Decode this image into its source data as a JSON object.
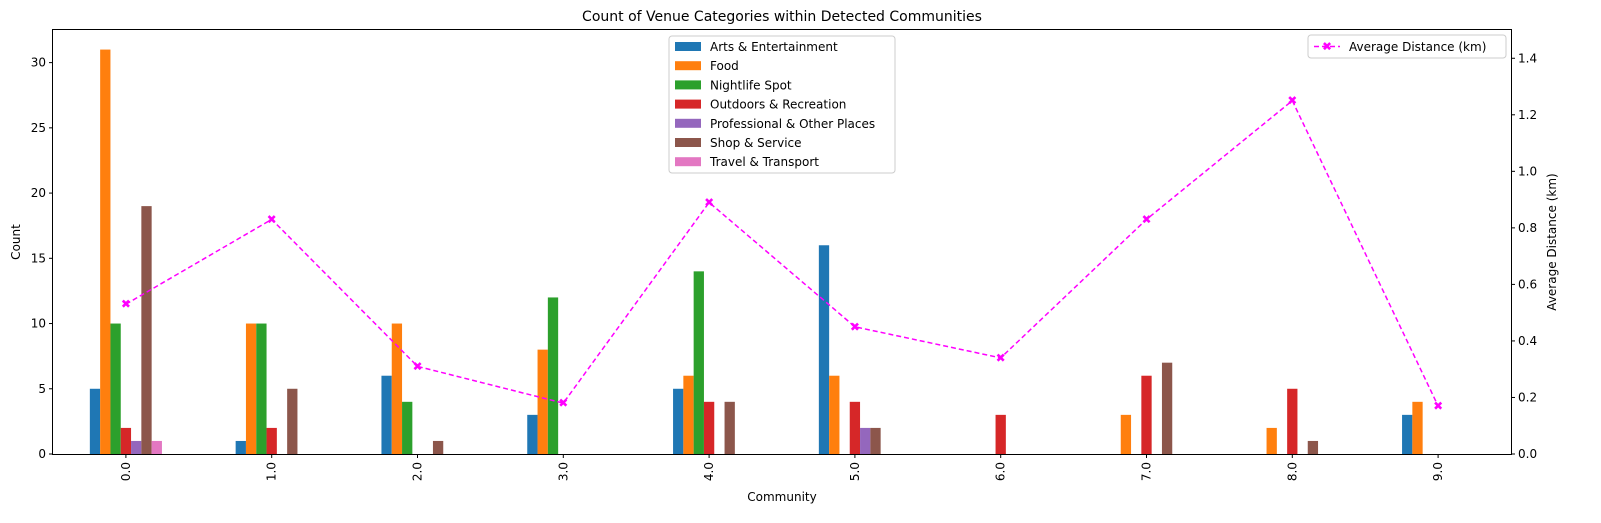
{
  "chart_data": {
    "type": "bar",
    "title": "Count of Venue Categories within Detected Communities",
    "xlabel": "Community",
    "ylabel": "Count",
    "y2label": "Average Distance (km)",
    "categories": [
      "0.0",
      "1.0",
      "2.0",
      "3.0",
      "4.0",
      "5.0",
      "6.0",
      "7.0",
      "8.0",
      "9.0"
    ],
    "ylim": [
      0,
      32.5
    ],
    "y2lim": [
      0,
      1.5
    ],
    "yticks": [
      0,
      5,
      10,
      15,
      20,
      25,
      30
    ],
    "y2ticks": [
      "0.0",
      "0.2",
      "0.4",
      "0.6",
      "0.8",
      "1.0",
      "1.2",
      "1.4"
    ],
    "grid": false,
    "legend_position": "top-center",
    "line_legend_position": "top-right",
    "series": [
      {
        "name": "Arts & Entertainment",
        "color": "#1f77b4",
        "values": [
          5,
          1,
          6,
          3,
          5,
          16,
          0,
          0,
          0,
          3
        ]
      },
      {
        "name": "Food",
        "color": "#ff7f0e",
        "values": [
          31,
          10,
          10,
          8,
          6,
          6,
          0,
          3,
          2,
          4
        ]
      },
      {
        "name": "Nightlife Spot",
        "color": "#2ca02c",
        "values": [
          10,
          10,
          4,
          12,
          14,
          0,
          0,
          0,
          0,
          0
        ]
      },
      {
        "name": "Outdoors & Recreation",
        "color": "#d62728",
        "values": [
          2,
          2,
          0,
          0,
          4,
          4,
          3,
          6,
          5,
          0
        ]
      },
      {
        "name": "Professional & Other Places",
        "color": "#9467bd",
        "values": [
          1,
          0,
          0,
          0,
          0,
          2,
          0,
          0,
          0,
          0
        ]
      },
      {
        "name": "Shop & Service",
        "color": "#8c564b",
        "values": [
          19,
          5,
          1,
          0,
          4,
          2,
          0,
          7,
          1,
          0
        ]
      },
      {
        "name": "Travel & Transport",
        "color": "#e377c2",
        "values": [
          1,
          0,
          0,
          0,
          0,
          0,
          0,
          0,
          0,
          0
        ]
      }
    ],
    "line_series": {
      "name": "Average Distance (km)",
      "color": "#ff00ff",
      "axis": "right",
      "values": [
        0.53,
        0.83,
        0.31,
        0.18,
        0.89,
        0.45,
        0.34,
        0.83,
        1.25,
        0.17
      ]
    }
  }
}
